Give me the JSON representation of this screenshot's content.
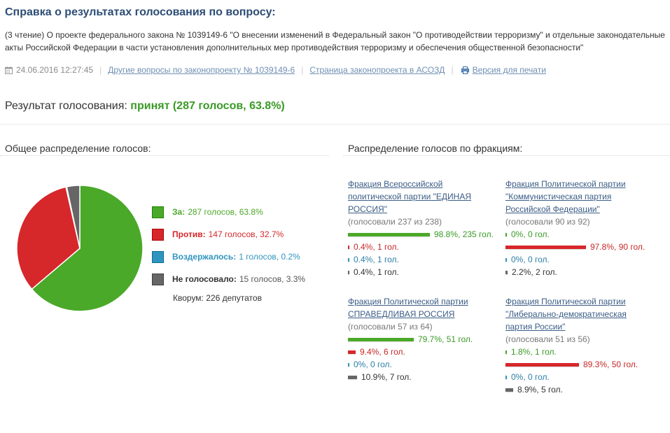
{
  "header": {
    "title": "Справка о результатах голосования по вопросу:",
    "description": "(3 чтение) О проекте федерального закона № 1039149-6 \"О внесении изменений в Федеральный закон \"О противодействии терроризму\" и отдельные законодательные акты Российской Федерации в части установления дополнительных мер противодействия терроризму и обеспечения общественной безопасности\"",
    "datetime": "24.06.2016 12:27:45",
    "links": {
      "other_questions": "Другие вопросы по законопроекту № 1039149-6",
      "bill_page": "Страница законопроекта в АСОЗД",
      "print_version": "Версия для печати"
    }
  },
  "result": {
    "label": "Результат голосования:",
    "value": "принят (287 голосов, 63.8%)"
  },
  "sections": {
    "overall": "Общее распределение голосов:",
    "factions": "Распределение голосов по фракциям:"
  },
  "colors": {
    "for": "#4aa928",
    "against": "#d6272b",
    "abstain": "#2f95be",
    "absent": "#666666",
    "link": "#3b5d86",
    "title": "#2c4d75"
  },
  "chart_data": {
    "type": "pie",
    "title": "",
    "slices": [
      {
        "key": "for",
        "label": "За:",
        "text": "287 голосов, 63.8%",
        "count": 287,
        "percent": 63.8,
        "color": "#4aa928"
      },
      {
        "key": "against",
        "label": "Против:",
        "text": "147 голосов, 32.7%",
        "count": 147,
        "percent": 32.7,
        "color": "#d6272b"
      },
      {
        "key": "abstain",
        "label": "Воздержалось:",
        "text": "1 голосов, 0.2%",
        "count": 1,
        "percent": 0.2,
        "color": "#2f95be"
      },
      {
        "key": "absent",
        "label": "Не голосовало:",
        "text": "15 голосов, 3.3%",
        "count": 15,
        "percent": 3.3,
        "color": "#666666"
      }
    ],
    "quorum": "Кворум: 226 депутатов"
  },
  "factions": [
    {
      "name": "Фракция Всероссийской политической партии \"ЕДИНАЯ РОССИЯ\"",
      "voted": "(голосовали 237 из 238)",
      "rows": [
        {
          "key": "for",
          "percent": 98.8,
          "text": "98.8%, 235 гол."
        },
        {
          "key": "against",
          "percent": 0.4,
          "text": "0.4%, 1 гол."
        },
        {
          "key": "abstain",
          "percent": 0.4,
          "text": "0.4%, 1 гол."
        },
        {
          "key": "absent",
          "percent": 0.4,
          "text": "0.4%, 1 гол."
        }
      ]
    },
    {
      "name": "Фракция Политической партии \"Коммунистическая партия Российской Федерации\"",
      "voted": "(голосовали 90 из 92)",
      "rows": [
        {
          "key": "for",
          "percent": 0,
          "text": "0%, 0 гол."
        },
        {
          "key": "against",
          "percent": 97.8,
          "text": "97.8%, 90 гол."
        },
        {
          "key": "abstain",
          "percent": 0,
          "text": "0%, 0 гол."
        },
        {
          "key": "absent",
          "percent": 2.2,
          "text": "2.2%, 2 гол."
        }
      ]
    },
    {
      "name": "Фракция Политической партии СПРАВЕДЛИВАЯ РОССИЯ",
      "voted": "(голосовали 57 из 64)",
      "rows": [
        {
          "key": "for",
          "percent": 79.7,
          "text": "79.7%, 51 гол."
        },
        {
          "key": "against",
          "percent": 9.4,
          "text": "9.4%, 6 гол."
        },
        {
          "key": "abstain",
          "percent": 0,
          "text": "0%, 0 гол."
        },
        {
          "key": "absent",
          "percent": 10.9,
          "text": "10.9%, 7 гол."
        }
      ]
    },
    {
      "name": "Фракция Политической партии \"Либерально-демократическая партия России\"",
      "voted": "(голосовали 51 из 56)",
      "rows": [
        {
          "key": "for",
          "percent": 1.8,
          "text": "1.8%, 1 гол."
        },
        {
          "key": "against",
          "percent": 89.3,
          "text": "89.3%, 50 гол."
        },
        {
          "key": "abstain",
          "percent": 0,
          "text": "0%, 0 гол."
        },
        {
          "key": "absent",
          "percent": 8.9,
          "text": "8.9%, 5 гол."
        }
      ]
    }
  ]
}
